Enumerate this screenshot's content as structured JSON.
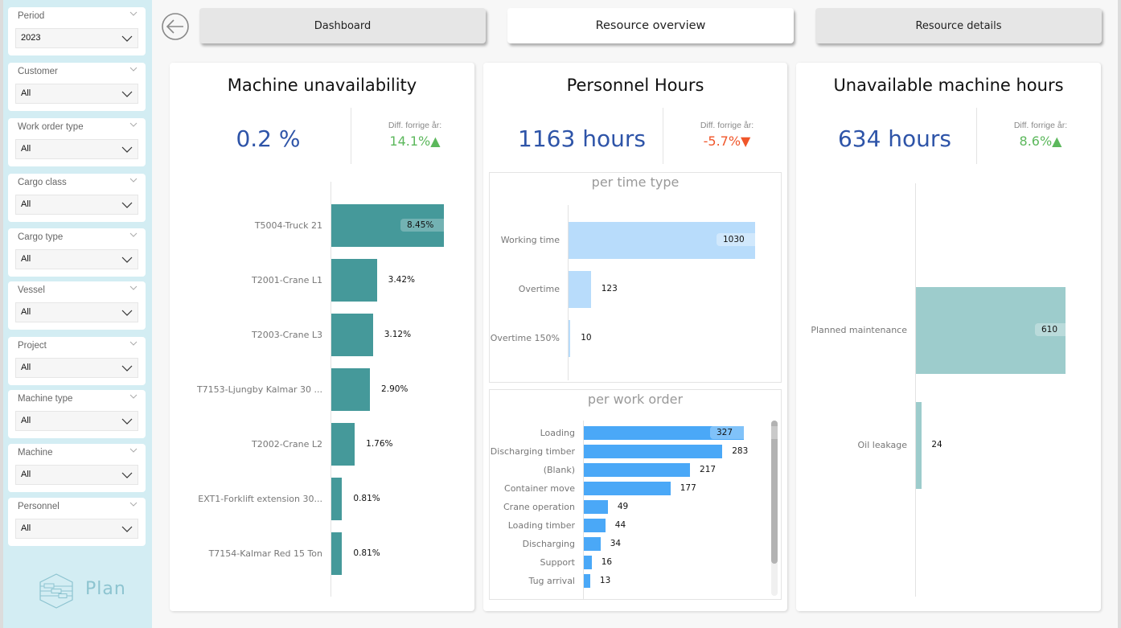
{
  "sidebar": {
    "slicers": [
      {
        "title": "Period",
        "value": "2023"
      },
      {
        "title": "Customer",
        "value": "All"
      },
      {
        "title": "Work order type",
        "value": "All"
      },
      {
        "title": "Cargo class",
        "value": "All"
      },
      {
        "title": "Cargo type",
        "value": "All"
      },
      {
        "title": "Vessel",
        "value": "All"
      },
      {
        "title": "Project",
        "value": "All"
      },
      {
        "title": "Machine type",
        "value": "All"
      },
      {
        "title": "Machine",
        "value": "All"
      },
      {
        "title": "Personnel",
        "value": "All"
      }
    ],
    "logo_text": "Plan"
  },
  "nav": {
    "back_icon": "arrow-left-circle-icon",
    "buttons": [
      {
        "label": "Dashboard",
        "active": false
      },
      {
        "label": "Resource overview",
        "active": true
      },
      {
        "label": "Resource details",
        "active": false
      }
    ]
  },
  "colors": {
    "kpi_blue": "#2e54a8",
    "positive_green": "#5cb85c",
    "negative_orange": "#f0562a",
    "machine_bar": "#45999a",
    "time_type_bar": "#b8dcfb",
    "work_order_bar": "#4aa8f7",
    "unavailable_bar": "#9dcccc",
    "sidebar_bg": "#d3edf3"
  },
  "cards": {
    "machine": {
      "title": "Machine unavailability",
      "kpi_value": "0.2 %",
      "diff_label": "Diff. forrige år:",
      "diff_value": "14.1%",
      "diff_direction": "up"
    },
    "personnel": {
      "title": "Personnel Hours",
      "kpi_value": "1163 hours",
      "diff_label": "Diff. forrige år:",
      "diff_value": "-5.7%",
      "diff_direction": "down",
      "time_type_title": "per time type",
      "work_order_title": "per work order"
    },
    "unavailable": {
      "title": "Unavailable machine hours",
      "kpi_value": "634 hours",
      "diff_label": "Diff. forrige år:",
      "diff_value": "8.6%",
      "diff_direction": "up"
    }
  },
  "chart_data": [
    {
      "id": "machine-unavailability",
      "type": "bar",
      "orientation": "horizontal",
      "title": "Machine unavailability",
      "categories": [
        "T5004-Truck 21",
        "T2001-Crane L1",
        "T2003-Crane L3",
        "T7153-Ljungby Kalmar 30 ...",
        "T2002-Crane L2",
        "EXT1-Forklift extension 30...",
        "T7154-Kalmar Red 15 Ton"
      ],
      "values": [
        8.45,
        3.42,
        3.12,
        2.9,
        1.76,
        0.81,
        0.81
      ],
      "value_labels": [
        "8.45%",
        "3.42%",
        "3.12%",
        "2.90%",
        "1.76%",
        "0.81%",
        "0.81%"
      ],
      "unit": "%",
      "xlim": [
        0,
        8.45
      ]
    },
    {
      "id": "personnel-per-time-type",
      "type": "bar",
      "orientation": "horizontal",
      "title": "per time type",
      "categories": [
        "Working time",
        "Overtime",
        "Overtime 150%"
      ],
      "values": [
        1030,
        123,
        10
      ],
      "value_labels": [
        "1030",
        "123",
        "10"
      ],
      "xlim": [
        0,
        1030
      ]
    },
    {
      "id": "personnel-per-work-order",
      "type": "bar",
      "orientation": "horizontal",
      "title": "per work order",
      "categories": [
        "Loading",
        "Discharging timber",
        "(Blank)",
        "Container move",
        "Crane operation",
        "Loading timber",
        "Discharging",
        "Support",
        "Tug arrival"
      ],
      "values": [
        327,
        283,
        217,
        177,
        49,
        44,
        34,
        16,
        13
      ],
      "value_labels": [
        "327",
        "283",
        "217",
        "177",
        "49",
        "44",
        "34",
        "16",
        "13"
      ],
      "xlim": [
        0,
        327
      ]
    },
    {
      "id": "unavailable-machine-hours",
      "type": "bar",
      "orientation": "horizontal",
      "title": "Unavailable machine hours",
      "categories": [
        "Planned maintenance",
        "Oil leakage"
      ],
      "values": [
        610,
        24
      ],
      "value_labels": [
        "610",
        "24"
      ],
      "xlim": [
        0,
        610
      ]
    }
  ]
}
